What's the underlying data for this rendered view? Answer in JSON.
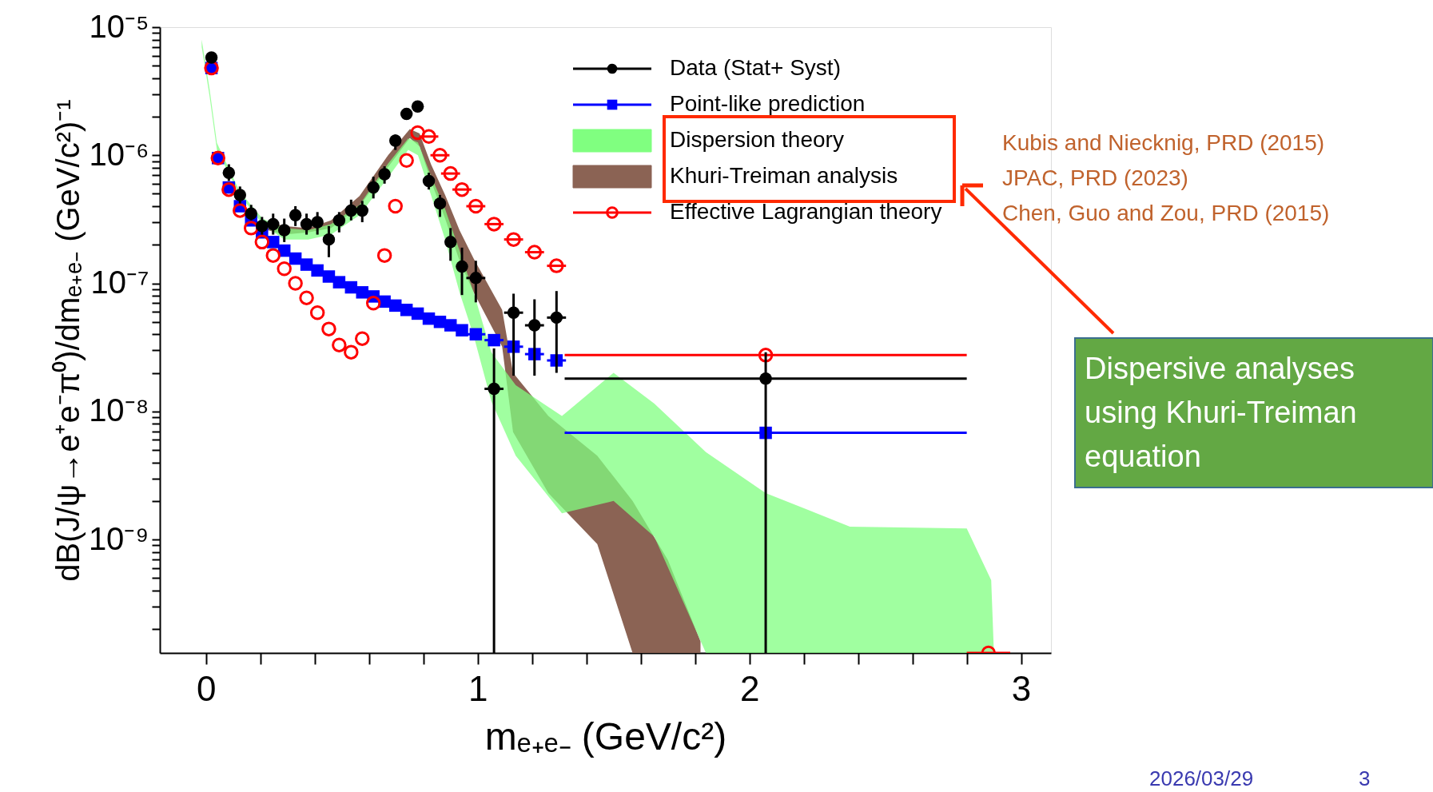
{
  "chart_data": {
    "type": "scatter",
    "xlabel": "mₑ₊ₑ₋ (GeV/c²)",
    "ylabel": "dB(J/ψ→e⁺e⁻π⁰)/dmₑ₊ₑ₋ (GeV/c²)⁻¹",
    "log": "y",
    "grid": false,
    "legend": "top right",
    "xlim": [
      -0.17,
      3.11
    ],
    "ylim": [
      1.3e-10,
      1e-05
    ],
    "xticks": [
      0,
      {
        "value": 0.2,
        "label": null
      },
      {
        "value": 0.4,
        "label": null
      },
      {
        "value": 0.6,
        "label": null
      },
      {
        "value": 0.8,
        "label": null
      },
      1,
      {
        "value": 1.2,
        "label": null
      },
      {
        "value": 1.4,
        "label": null
      },
      {
        "value": 1.6,
        "label": null
      },
      {
        "value": 1.8,
        "label": null
      },
      2,
      {
        "value": 2.2,
        "label": null
      },
      {
        "value": 2.4,
        "label": null
      },
      {
        "value": 2.6,
        "label": null
      },
      {
        "value": 2.8,
        "label": null
      },
      3
    ],
    "yticks": [
      {
        "value": 2e-10,
        "label": null
      },
      {
        "value": 3e-10,
        "label": null
      },
      {
        "value": 4e-10,
        "label": null
      },
      {
        "value": 5e-10,
        "label": null
      },
      {
        "value": 6e-10,
        "label": null
      },
      {
        "value": 7e-10,
        "label": null
      },
      {
        "value": 8e-10,
        "label": null
      },
      {
        "value": 9e-10,
        "label": null
      },
      {
        "value": 1e-09,
        "label": "10⁻⁹"
      },
      {
        "value": 2e-09,
        "label": null
      },
      {
        "value": 3e-09,
        "label": null
      },
      {
        "value": 4e-09,
        "label": null
      },
      {
        "value": 5e-09,
        "label": null
      },
      {
        "value": 6e-09,
        "label": null
      },
      {
        "value": 7e-09,
        "label": null
      },
      {
        "value": 8e-09,
        "label": null
      },
      {
        "value": 9e-09,
        "label": null
      },
      {
        "value": 1e-08,
        "label": "10⁻⁸"
      },
      {
        "value": 2e-08,
        "label": null
      },
      {
        "value": 3e-08,
        "label": null
      },
      {
        "value": 4e-08,
        "label": null
      },
      {
        "value": 5e-08,
        "label": null
      },
      {
        "value": 6e-08,
        "label": null
      },
      {
        "value": 7e-08,
        "label": null
      },
      {
        "value": 8e-08,
        "label": null
      },
      {
        "value": 9e-08,
        "label": null
      },
      {
        "value": 1e-07,
        "label": "10⁻⁷"
      },
      {
        "value": 2e-07,
        "label": null
      },
      {
        "value": 3e-07,
        "label": null
      },
      {
        "value": 4e-07,
        "label": null
      },
      {
        "value": 5e-07,
        "label": null
      },
      {
        "value": 6e-07,
        "label": null
      },
      {
        "value": 7e-07,
        "label": null
      },
      {
        "value": 8e-07,
        "label": null
      },
      {
        "value": 9e-07,
        "label": null
      },
      {
        "value": 1e-06,
        "label": "10⁻⁶"
      },
      {
        "value": 2e-06,
        "label": null
      },
      {
        "value": 3e-06,
        "label": null
      },
      {
        "value": 4e-06,
        "label": null
      },
      {
        "value": 5e-06,
        "label": null
      },
      {
        "value": 6e-06,
        "label": null
      },
      {
        "value": 7e-06,
        "label": null
      },
      {
        "value": 8e-06,
        "label": null
      },
      {
        "value": 9e-06,
        "label": null
      },
      {
        "value": 1e-05,
        "label": "10⁻⁵"
      }
    ],
    "series": [
      {
        "name": "Data (Stat+ Syst)",
        "marker": "circle",
        "color": "#000000",
        "x": [
          0.02,
          0.044,
          0.084,
          0.125,
          0.166,
          0.206,
          0.247,
          0.288,
          0.329,
          0.37,
          0.41,
          0.452,
          0.49,
          0.534,
          0.575,
          0.616,
          0.657,
          0.697,
          0.738,
          0.779,
          0.82,
          0.861,
          0.9,
          0.942,
          0.993,
          1.06,
          1.132,
          1.209,
          1.29,
          2.06
        ],
        "values": [
          5.8e-06,
          null,
          7.3e-07,
          4.9e-07,
          3.5e-07,
          2.8e-07,
          2.9e-07,
          2.6e-07,
          3.4e-07,
          2.9e-07,
          3e-07,
          2.2e-07,
          3.1e-07,
          3.7e-07,
          3.7e-07,
          5.6e-07,
          7.1e-07,
          1.3e-06,
          2.1e-06,
          2.4e-06,
          6.3e-07,
          4.2e-07,
          2.1e-07,
          1.35e-07,
          1.1e-07,
          1.5e-08,
          5.9e-08,
          4.7e-08,
          5.4e-08,
          1.8e-08
        ],
        "errors": [
          null,
          null,
          [
            6.3e-07,
            8.5e-07
          ],
          [
            4.2e-07,
            5.7e-07
          ],
          [
            3.1e-07,
            4.1e-07
          ],
          [
            2.4e-07,
            3.3e-07
          ],
          [
            2.4e-07,
            3.5e-07
          ],
          [
            2.1e-07,
            3.2e-07
          ],
          [
            2.8e-07,
            4e-07
          ],
          [
            2.4e-07,
            3.5e-07
          ],
          [
            2.4e-07,
            3.6e-07
          ],
          [
            1.6e-07,
            2.8e-07
          ],
          [
            2.5e-07,
            3.6e-07
          ],
          [
            3.1e-07,
            4.5e-07
          ],
          [
            3e-07,
            4.4e-07
          ],
          [
            4.6e-07,
            6.8e-07
          ],
          [
            6e-07,
            8.2e-07
          ],
          [
            1.1e-06,
            1.45e-06
          ],
          null,
          null,
          [
            5.4e-07,
            7.3e-07
          ],
          [
            3.3e-07,
            4.9e-07
          ],
          [
            1.5e-07,
            2.7e-07
          ],
          [
            8.1e-08,
            1.9e-07
          ],
          [
            7.1e-08,
            1.5e-07
          ],
          [
            1.3e-10,
            3.1e-08
          ],
          [
            1.9e-08,
            8.3e-08
          ],
          [
            1.9e-08,
            7.5e-08
          ],
          [
            2e-08,
            8.7e-08
          ],
          [
            1.3e-10,
            2.9e-08
          ]
        ],
        "xerrors": [
          null,
          null,
          null,
          null,
          null,
          null,
          null,
          null,
          null,
          null,
          null,
          null,
          null,
          null,
          null,
          null,
          null,
          null,
          null,
          null,
          null,
          null,
          null,
          null,
          0.035,
          0.035,
          0.035,
          0.035,
          0.035,
          [
            1.32,
            2.8
          ]
        ]
      },
      {
        "name": "Point-like prediction",
        "marker": "square",
        "color": "#0000ff",
        "x": [
          0.02,
          0.044,
          0.084,
          0.125,
          0.166,
          0.206,
          0.247,
          0.288,
          0.329,
          0.37,
          0.41,
          0.452,
          0.49,
          0.534,
          0.575,
          0.616,
          0.657,
          0.697,
          0.738,
          0.779,
          0.82,
          0.861,
          0.9,
          0.942,
          0.993,
          1.06,
          1.132,
          1.209,
          1.29,
          2.06
        ],
        "values": [
          4.8e-06,
          9.5e-07,
          5.6e-07,
          4e-07,
          3.1e-07,
          2.5e-07,
          2.1e-07,
          1.8e-07,
          1.56e-07,
          1.4e-07,
          1.26e-07,
          1.13e-07,
          1.02e-07,
          9.3e-08,
          8.5e-08,
          7.9e-08,
          7.2e-08,
          6.7e-08,
          6.2e-08,
          5.8e-08,
          5.3e-08,
          5e-08,
          4.7e-08,
          4.3e-08,
          4e-08,
          3.6e-08,
          3.2e-08,
          2.8e-08,
          2.5e-08,
          6.8e-09
        ],
        "xerrors": [
          null,
          null,
          null,
          null,
          null,
          null,
          null,
          null,
          null,
          null,
          null,
          null,
          null,
          null,
          null,
          null,
          null,
          null,
          null,
          null,
          null,
          null,
          null,
          null,
          0.035,
          0.035,
          0.035,
          0.035,
          0.035,
          [
            1.32,
            2.8
          ]
        ]
      },
      {
        "name": "Dispersion theory",
        "type": "area",
        "color": "#80ff80",
        "x": [
          -0.016,
          0.013,
          0.04,
          0.124,
          0.208,
          0.288,
          0.376,
          0.46,
          0.565,
          0.67,
          0.744,
          0.78,
          0.828,
          0.88,
          0.933,
          0.985,
          1.05,
          1.14,
          1.31,
          1.5,
          1.65,
          1.84,
          2.06,
          2.37,
          2.8,
          2.89,
          2.9
        ],
        "values": [
          null,
          null,
          null,
          null,
          null,
          null,
          null,
          null,
          null,
          null,
          null,
          null,
          null,
          null,
          null,
          null,
          null,
          null,
          null,
          null,
          null,
          null,
          null,
          null,
          null,
          null,
          null
        ],
        "lower": [
          7e-06,
          2.9e-06,
          1.1e-06,
          4.9e-07,
          2.9e-07,
          2.2e-07,
          2.2e-07,
          2.4e-07,
          3.4e-07,
          6.7e-07,
          1.1e-06,
          1e-06,
          4.9e-07,
          2.2e-07,
          8.5e-08,
          3.9e-08,
          1.2e-08,
          4.5e-09,
          1.6e-09,
          2e-09,
          1.05e-09,
          1.3e-10,
          1.3e-10,
          1.3e-10,
          1.3e-10,
          1.3e-10,
          1.3e-10
        ],
        "upper": [
          8e-06,
          3.3e-06,
          1.25e-06,
          5.2e-07,
          3.2e-07,
          2.7e-07,
          2.6e-07,
          2.9e-07,
          4.1e-07,
          8.6e-07,
          1.35e-06,
          1.26e-06,
          6.9e-07,
          3.8e-07,
          1.8e-07,
          8.5e-08,
          2.9e-08,
          1.6e-08,
          9.2e-09,
          2e-08,
          1.15e-08,
          4.8e-09,
          2.3e-09,
          1.26e-09,
          1.22e-09,
          4.8e-10,
          1.3e-10
        ]
      },
      {
        "name": "Khuri-Treiman analysis",
        "type": "area",
        "color": "#8b6354",
        "x": [
          0.2,
          0.288,
          0.376,
          0.46,
          0.565,
          0.67,
          0.75,
          0.786,
          0.828,
          0.88,
          0.933,
          0.985,
          1.09,
          1.13,
          1.26,
          1.44,
          1.57,
          1.7,
          1.82
        ],
        "values": [
          null,
          null,
          null,
          null,
          null,
          null,
          null,
          null,
          null,
          null,
          null,
          null,
          null,
          null,
          null,
          null,
          null,
          null,
          null
        ],
        "lower": [
          2.7e-07,
          2.4e-07,
          2.5e-07,
          2.7e-07,
          4e-07,
          8.1e-07,
          1.36e-06,
          1.17e-06,
          6.3e-07,
          3.2e-07,
          1.5e-07,
          8.5e-08,
          3.2e-08,
          6.9e-09,
          2.3e-09,
          9.2e-10,
          1.3e-10,
          1.3e-10,
          1.3e-10
        ],
        "upper": [
          3.1e-07,
          2.8e-07,
          2.7e-07,
          3.1e-07,
          4.8e-07,
          1e-06,
          1.6e-06,
          1.48e-06,
          8.5e-07,
          4.9e-07,
          2.6e-07,
          1.56e-07,
          6.2e-08,
          2e-08,
          9.2e-09,
          4.5e-09,
          2e-09,
          6.9e-10,
          1.6e-10
        ]
      },
      {
        "name": "Effective Lagrangian theory",
        "marker": "circle",
        "color": "#ff0000",
        "x": [
          0.02,
          0.044,
          0.084,
          0.125,
          0.166,
          0.206,
          0.247,
          0.288,
          0.329,
          0.37,
          0.41,
          0.452,
          0.49,
          0.534,
          0.575,
          0.616,
          0.657,
          0.697,
          0.738,
          0.779,
          0.82,
          0.861,
          0.9,
          0.942,
          0.993,
          1.06,
          1.132,
          1.209,
          1.29,
          2.06,
          2.88
        ],
        "values": [
          4.8e-06,
          9.5e-07,
          5.4e-07,
          3.7e-07,
          2.7e-07,
          2.1e-07,
          1.65e-07,
          1.3e-07,
          1e-07,
          7.7e-08,
          5.9e-08,
          4.4e-08,
          3.3e-08,
          2.9e-08,
          3.7e-08,
          7e-08,
          1.65e-07,
          4e-07,
          9.1e-07,
          1.5e-06,
          1.4e-06,
          1e-06,
          7.2e-07,
          5.4e-07,
          4e-07,
          2.9e-07,
          2.2e-07,
          1.75e-07,
          1.37e-07,
          2.75e-08,
          1.3e-10
        ],
        "xerrors": [
          null,
          null,
          null,
          null,
          null,
          null,
          null,
          null,
          null,
          null,
          null,
          null,
          null,
          null,
          null,
          null,
          null,
          null,
          null,
          null,
          0.035,
          0.035,
          0.035,
          0.035,
          0.035,
          0.035,
          0.035,
          0.035,
          0.035,
          [
            1.32,
            2.8
          ],
          [
            2.8,
            2.96
          ]
        ]
      }
    ],
    "annotations": [
      "Kubis and Niecknig, PRD (2015)",
      "JPAC, PRD (2023)",
      "Chen, Guo and Zou, PRD (2015)",
      "Dispersive analyses using Khuri-Treiman equation",
      "2026/03/29",
      "3"
    ]
  }
}
